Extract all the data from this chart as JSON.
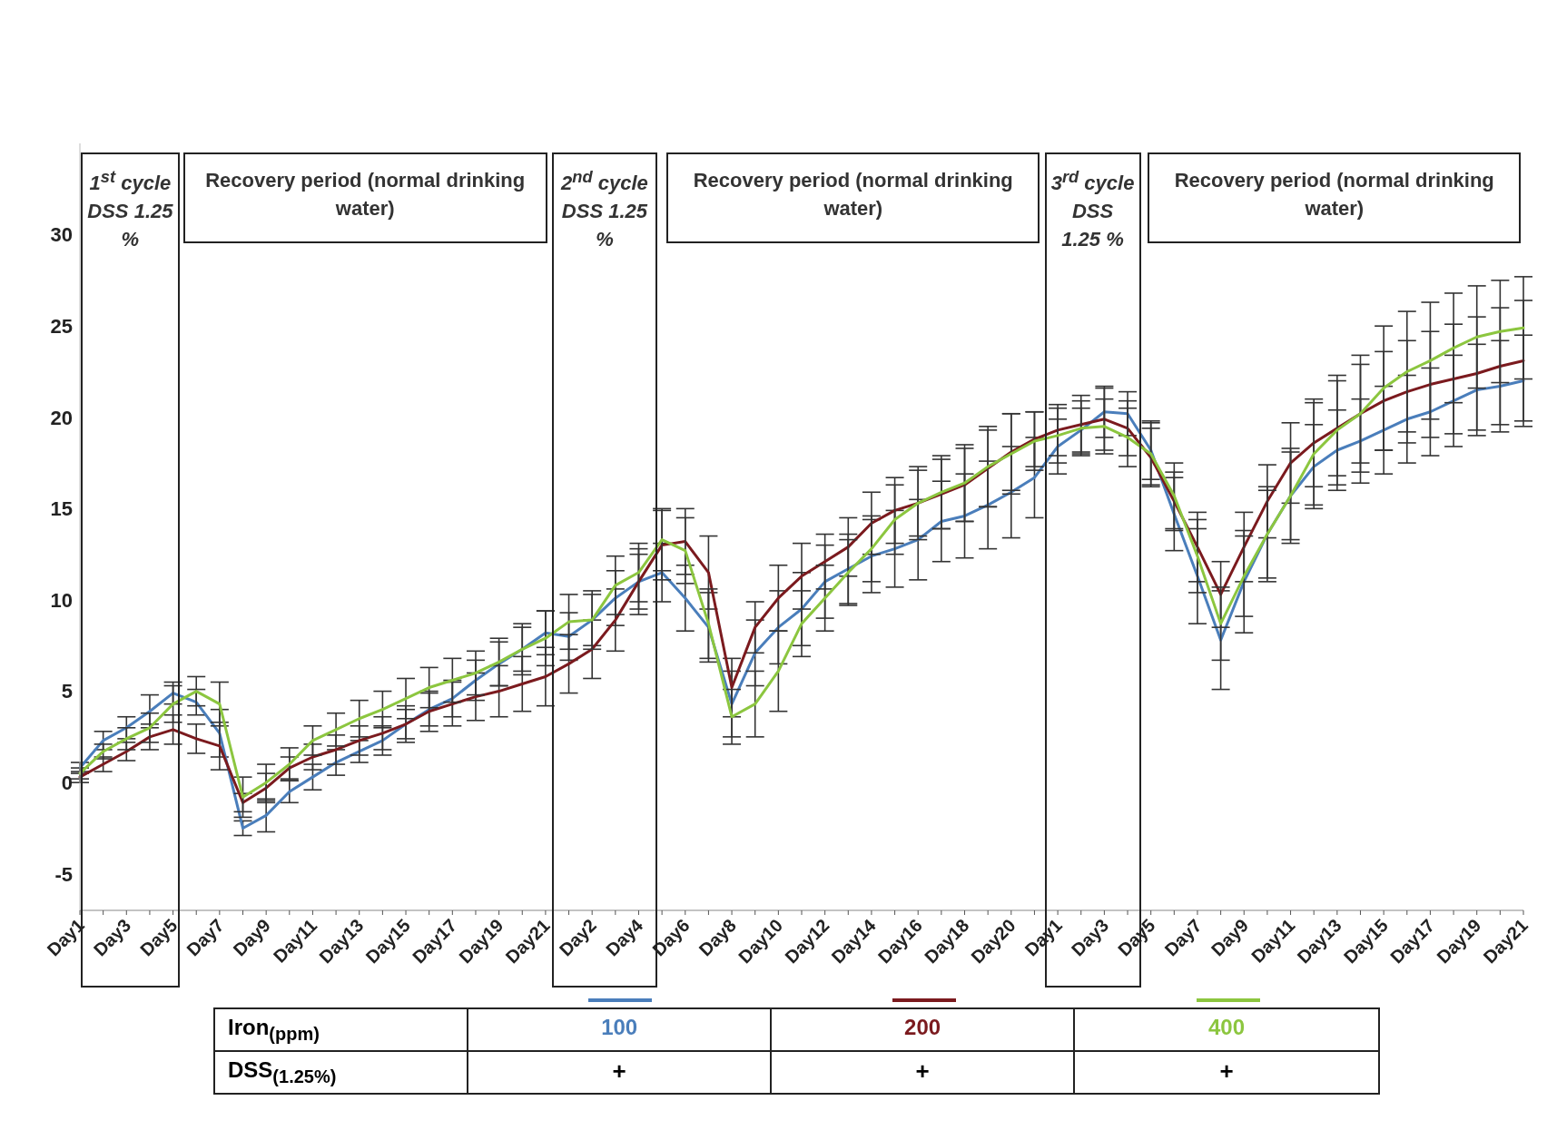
{
  "chart_data": {
    "type": "line",
    "categories": [
      "Day1",
      null,
      "Day3",
      null,
      "Day5",
      null,
      "Day7",
      null,
      "Day9",
      null,
      "Day11",
      null,
      "Day13",
      null,
      "Day15",
      null,
      "Day17",
      null,
      "Day19",
      null,
      "Day21",
      null,
      "Day2",
      null,
      "Day4",
      null,
      "Day6",
      null,
      "Day8",
      null,
      "Day10",
      null,
      "Day12",
      null,
      "Day14",
      null,
      "Day16",
      null,
      "Day18",
      null,
      "Day20",
      null,
      "Day1",
      null,
      "Day3",
      null,
      "Day5",
      null,
      "Day7",
      null,
      "Day9",
      null,
      "Day11",
      null,
      "Day13",
      null,
      "Day15",
      null,
      "Day17",
      null,
      "Day19",
      null,
      "Day21"
    ],
    "series": [
      {
        "name": "100",
        "color": "#4a7ebb",
        "values": [
          0.8,
          2.3,
          3.0,
          3.9,
          4.9,
          4.4,
          2.7,
          -2.5,
          -1.8,
          -0.5,
          0.3,
          1.1,
          1.7,
          2.3,
          3.2,
          4.0,
          4.6,
          5.6,
          6.5,
          7.3,
          8.2,
          8.0,
          8.9,
          10.1,
          11.0,
          11.5,
          10.1,
          8.5,
          4.3,
          7.1,
          8.5,
          9.5,
          11.0,
          11.7,
          12.4,
          12.8,
          13.3,
          14.3,
          14.6,
          15.2,
          15.9,
          16.7,
          18.4,
          19.3,
          20.3,
          20.2,
          18.2,
          14.7,
          11.3,
          7.8,
          11.0,
          13.6,
          15.7,
          17.3,
          18.2,
          18.7,
          19.3,
          19.9,
          20.3,
          20.9,
          21.5,
          21.7,
          22.0
        ],
        "errors": [
          0.3,
          0.5,
          0.6,
          0.9,
          0.6,
          0.7,
          1.3,
          0.4,
          0.9,
          0.6,
          0.7,
          0.7,
          0.6,
          0.8,
          0.8,
          0.9,
          1.0,
          1.1,
          1.2,
          1.2,
          1.2,
          1.3,
          1.4,
          1.5,
          1.5,
          1.6,
          1.8,
          1.9,
          1.8,
          1.8,
          2.0,
          2.0,
          2.0,
          1.9,
          2.0,
          2.1,
          2.2,
          2.2,
          2.3,
          2.4,
          2.5,
          2.2,
          1.5,
          1.2,
          1.4,
          1.2,
          1.6,
          2.0,
          2.6,
          2.7,
          2.8,
          2.6,
          2.4,
          2.3,
          2.2,
          2.3,
          2.4,
          2.4,
          2.4,
          2.5,
          2.5,
          2.5,
          2.5
        ]
      },
      {
        "name": "200",
        "color": "#7b1a1e",
        "values": [
          0.3,
          1.0,
          1.7,
          2.5,
          2.9,
          2.4,
          2.0,
          -1.1,
          -0.3,
          0.8,
          1.4,
          1.8,
          2.3,
          2.7,
          3.2,
          3.9,
          4.3,
          4.7,
          5.0,
          5.4,
          5.8,
          6.5,
          7.3,
          8.9,
          11.0,
          13.0,
          13.2,
          11.5,
          5.2,
          8.5,
          10.1,
          11.3,
          12.1,
          12.9,
          14.2,
          14.9,
          15.3,
          15.8,
          16.3,
          17.2,
          18.1,
          18.8,
          19.3,
          19.6,
          19.9,
          19.4,
          17.8,
          15.4,
          12.9,
          10.3,
          12.9,
          15.4,
          17.5,
          18.6,
          19.4,
          20.2,
          20.9,
          21.4,
          21.8,
          22.1,
          22.4,
          22.8,
          23.1
        ],
        "errors": [
          0.3,
          0.4,
          0.5,
          0.7,
          0.8,
          0.8,
          1.3,
          0.5,
          0.8,
          0.6,
          0.7,
          0.8,
          0.8,
          0.9,
          1.0,
          1.1,
          1.2,
          1.3,
          1.4,
          1.5,
          1.6,
          1.6,
          1.6,
          1.7,
          1.8,
          1.9,
          1.8,
          2.0,
          1.6,
          1.4,
          1.8,
          1.8,
          1.5,
          1.6,
          1.7,
          1.8,
          1.8,
          1.9,
          2.0,
          2.1,
          2.1,
          1.5,
          1.4,
          1.6,
          1.7,
          1.5,
          1.6,
          1.6,
          1.9,
          1.8,
          1.9,
          2.0,
          2.2,
          2.4,
          2.6,
          2.7,
          2.7,
          2.8,
          2.9,
          3.0,
          3.1,
          3.2,
          3.3
        ]
      },
      {
        "name": "400",
        "color": "#8cc63f",
        "values": [
          0.5,
          1.7,
          2.4,
          3.0,
          4.3,
          5.0,
          4.3,
          -0.8,
          0,
          1.0,
          2.3,
          2.9,
          3.5,
          4.0,
          4.6,
          5.2,
          5.6,
          6.0,
          6.6,
          7.3,
          7.9,
          8.8,
          8.9,
          10.8,
          11.5,
          13.3,
          12.7,
          8.7,
          3.6,
          4.3,
          6.1,
          8.7,
          10.1,
          11.5,
          12.8,
          14.4,
          15.3,
          15.9,
          16.4,
          17.3,
          18.0,
          18.7,
          19.0,
          19.4,
          19.5,
          18.9,
          18.0,
          15.7,
          12.4,
          8.7,
          11.3,
          13.6,
          15.7,
          18.0,
          19.3,
          20.2,
          21.6,
          22.5,
          23.1,
          23.8,
          24.4,
          24.7,
          24.9
        ],
        "errors": [
          0.3,
          0.4,
          0.6,
          0.8,
          1.0,
          0.8,
          1.2,
          1.1,
          1.0,
          0.9,
          0.8,
          0.9,
          1.0,
          1.0,
          1.1,
          1.1,
          1.2,
          1.2,
          1.3,
          1.4,
          1.5,
          1.5,
          1.6,
          1.6,
          1.6,
          1.7,
          1.8,
          1.9,
          1.5,
          1.8,
          2.2,
          1.8,
          1.8,
          1.8,
          1.8,
          1.9,
          2.0,
          2.0,
          2.1,
          2.2,
          2.2,
          1.6,
          1.5,
          1.5,
          1.5,
          1.6,
          1.7,
          1.8,
          2.0,
          2.0,
          2.2,
          2.4,
          2.6,
          2.8,
          3.0,
          3.2,
          3.4,
          3.3,
          3.2,
          3.0,
          2.8,
          2.8,
          2.8
        ]
      }
    ],
    "ylim": [
      -7,
      35
    ],
    "yticks": [
      -5,
      0,
      5,
      10,
      15,
      20,
      25,
      30
    ],
    "legend": "bottom",
    "legend_title": "Iron$_{(ppm)}$",
    "annotations": [
      "1$^{st}$ cycle DSS 1.25 %",
      "Recovery period (normal drinking water)",
      "2$^{nd}$ cycle DSS 1.25 %",
      "Recovery period (normal drinking water)",
      "3$^{rd}$ cycle DSS 1.25 %",
      "Recovery period (normal drinking water)",
      "DSS$_{(1.25%)}$",
      "+",
      "+",
      "+"
    ]
  }
}
